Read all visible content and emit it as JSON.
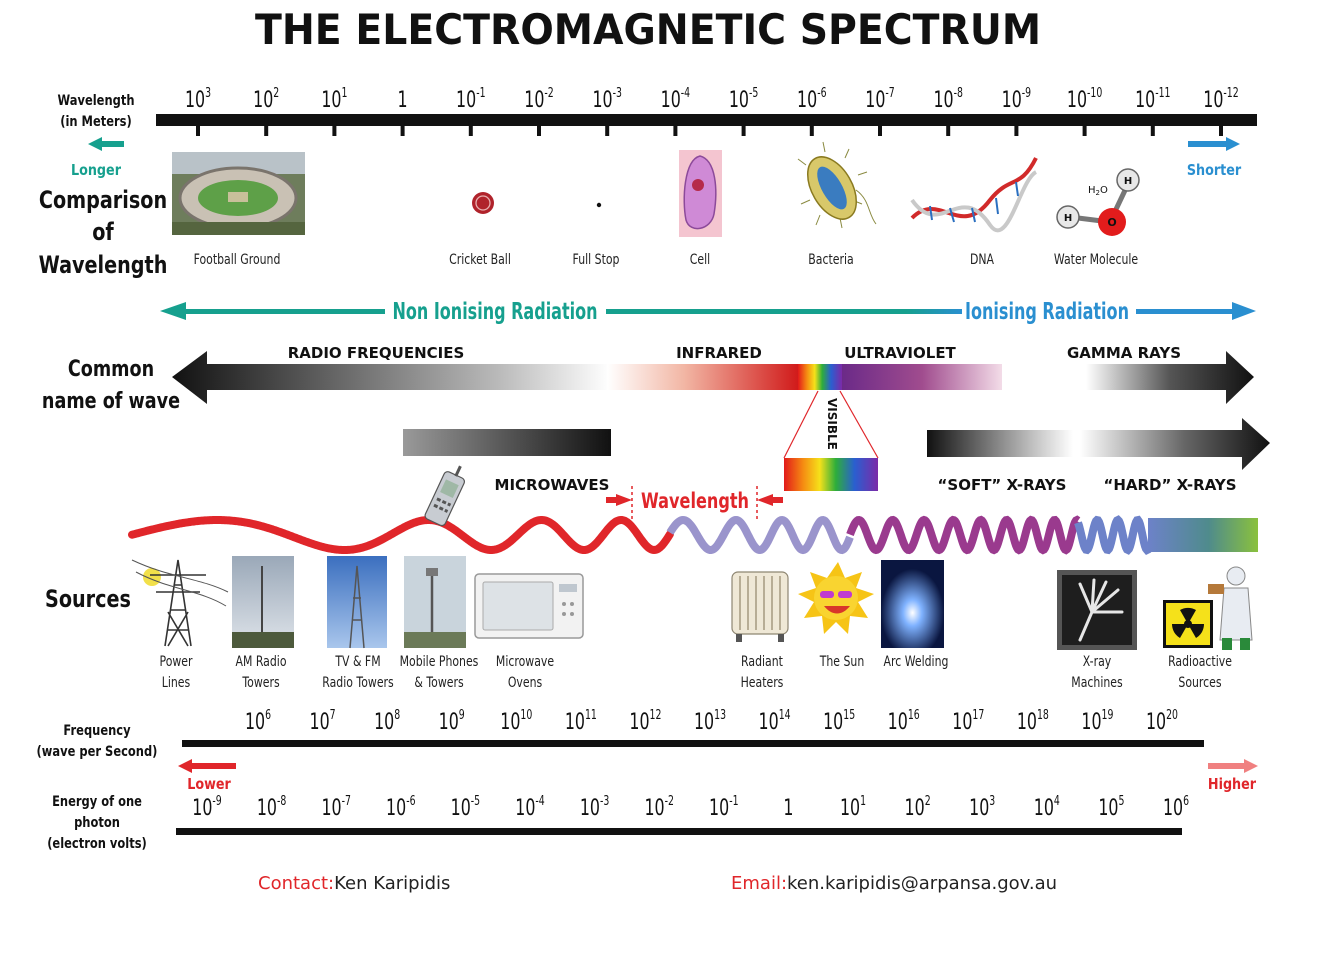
{
  "title": "THE ELECTROMAGNETIC SPECTRUM",
  "wavelength_axis": {
    "label_line1": "Wavelength",
    "label_line2": "(in Meters)",
    "ticks": [
      {
        "base": "10",
        "exp": "3"
      },
      {
        "base": "10",
        "exp": "2"
      },
      {
        "base": "10",
        "exp": "1"
      },
      {
        "base": "1",
        "exp": ""
      },
      {
        "base": "10",
        "exp": "-1"
      },
      {
        "base": "10",
        "exp": "-2"
      },
      {
        "base": "10",
        "exp": "-3"
      },
      {
        "base": "10",
        "exp": "-4"
      },
      {
        "base": "10",
        "exp": "-5"
      },
      {
        "base": "10",
        "exp": "-6"
      },
      {
        "base": "10",
        "exp": "-7"
      },
      {
        "base": "10",
        "exp": "-8"
      },
      {
        "base": "10",
        "exp": "-9"
      },
      {
        "base": "10",
        "exp": "-10"
      },
      {
        "base": "10",
        "exp": "-11"
      },
      {
        "base": "10",
        "exp": "-12"
      }
    ],
    "longer": "Longer",
    "shorter": "Shorter"
  },
  "comparison": {
    "label_line1": "Comparison",
    "label_line2": "of",
    "label_line3": "Wavelength",
    "items": [
      "Football Ground",
      "Cricket Ball",
      "Full Stop",
      "Cell",
      "Bacteria",
      "DNA",
      "Water Molecule"
    ],
    "molecule": {
      "formula": "H2O",
      "h": "H",
      "o": "O"
    }
  },
  "radiation": {
    "non_ionising": "Non Ionising Radiation",
    "ionising": "Ionising Radiation"
  },
  "common_name": {
    "label_line1": "Common",
    "label_line2": "name of wave",
    "radio": "RADIO FREQUENCIES",
    "infrared": "INFRARED",
    "ultraviolet": "ULTRAVIOLET",
    "gamma": "GAMMA RAYS",
    "visible": "VISIBLE",
    "microwaves": "MICROWAVES",
    "wavelength": "Wavelength",
    "soft_xrays": "“SOFT” X-RAYS",
    "hard_xrays": "“HARD” X-RAYS"
  },
  "sources": {
    "label": "Sources",
    "items": [
      {
        "line1": "Power",
        "line2": "Lines"
      },
      {
        "line1": "AM Radio",
        "line2": "Towers"
      },
      {
        "line1": "TV & FM",
        "line2": "Radio Towers"
      },
      {
        "line1": "Mobile Phones",
        "line2": "& Towers"
      },
      {
        "line1": "Microwave",
        "line2": "Ovens"
      },
      {
        "line1": "Radiant",
        "line2": "Heaters"
      },
      {
        "line1": "The Sun",
        "line2": ""
      },
      {
        "line1": "Arc Welding",
        "line2": ""
      },
      {
        "line1": "X-ray",
        "line2": "Machines"
      },
      {
        "line1": "Radioactive",
        "line2": "Sources"
      }
    ]
  },
  "frequency_axis": {
    "label_line1": "Frequency",
    "label_line2": "(wave per Second)",
    "ticks": [
      {
        "base": "10",
        "exp": "6"
      },
      {
        "base": "10",
        "exp": "7"
      },
      {
        "base": "10",
        "exp": "8"
      },
      {
        "base": "10",
        "exp": "9"
      },
      {
        "base": "10",
        "exp": "10"
      },
      {
        "base": "10",
        "exp": "11"
      },
      {
        "base": "10",
        "exp": "12"
      },
      {
        "base": "10",
        "exp": "13"
      },
      {
        "base": "10",
        "exp": "14"
      },
      {
        "base": "10",
        "exp": "15"
      },
      {
        "base": "10",
        "exp": "16"
      },
      {
        "base": "10",
        "exp": "17"
      },
      {
        "base": "10",
        "exp": "18"
      },
      {
        "base": "10",
        "exp": "19"
      },
      {
        "base": "10",
        "exp": "20"
      }
    ],
    "lower": "Lower",
    "higher": "Higher"
  },
  "energy_axis": {
    "label_line1": "Energy of one",
    "label_line2": "photon",
    "label_line3": "(electron volts)",
    "ticks": [
      {
        "base": "10",
        "exp": "-9"
      },
      {
        "base": "10",
        "exp": "-8"
      },
      {
        "base": "10",
        "exp": "-7"
      },
      {
        "base": "10",
        "exp": "-6"
      },
      {
        "base": "10",
        "exp": "-5"
      },
      {
        "base": "10",
        "exp": "-4"
      },
      {
        "base": "10",
        "exp": "-3"
      },
      {
        "base": "10",
        "exp": "-2"
      },
      {
        "base": "10",
        "exp": "-1"
      },
      {
        "base": "1",
        "exp": ""
      },
      {
        "base": "10",
        "exp": "1"
      },
      {
        "base": "10",
        "exp": "2"
      },
      {
        "base": "10",
        "exp": "3"
      },
      {
        "base": "10",
        "exp": "4"
      },
      {
        "base": "10",
        "exp": "5"
      },
      {
        "base": "10",
        "exp": "6"
      }
    ]
  },
  "contact": {
    "contact_label": "Contact:",
    "contact_name": "Ken Karipidis",
    "email_label": "Email:",
    "email": "ken.karipidis@arpansa.gov.au"
  },
  "colors": {
    "teal": "#16a08e",
    "blue": "#2a8fd0",
    "red": "#e0262a",
    "purple": "#8a3a8a",
    "black": "#111111"
  }
}
